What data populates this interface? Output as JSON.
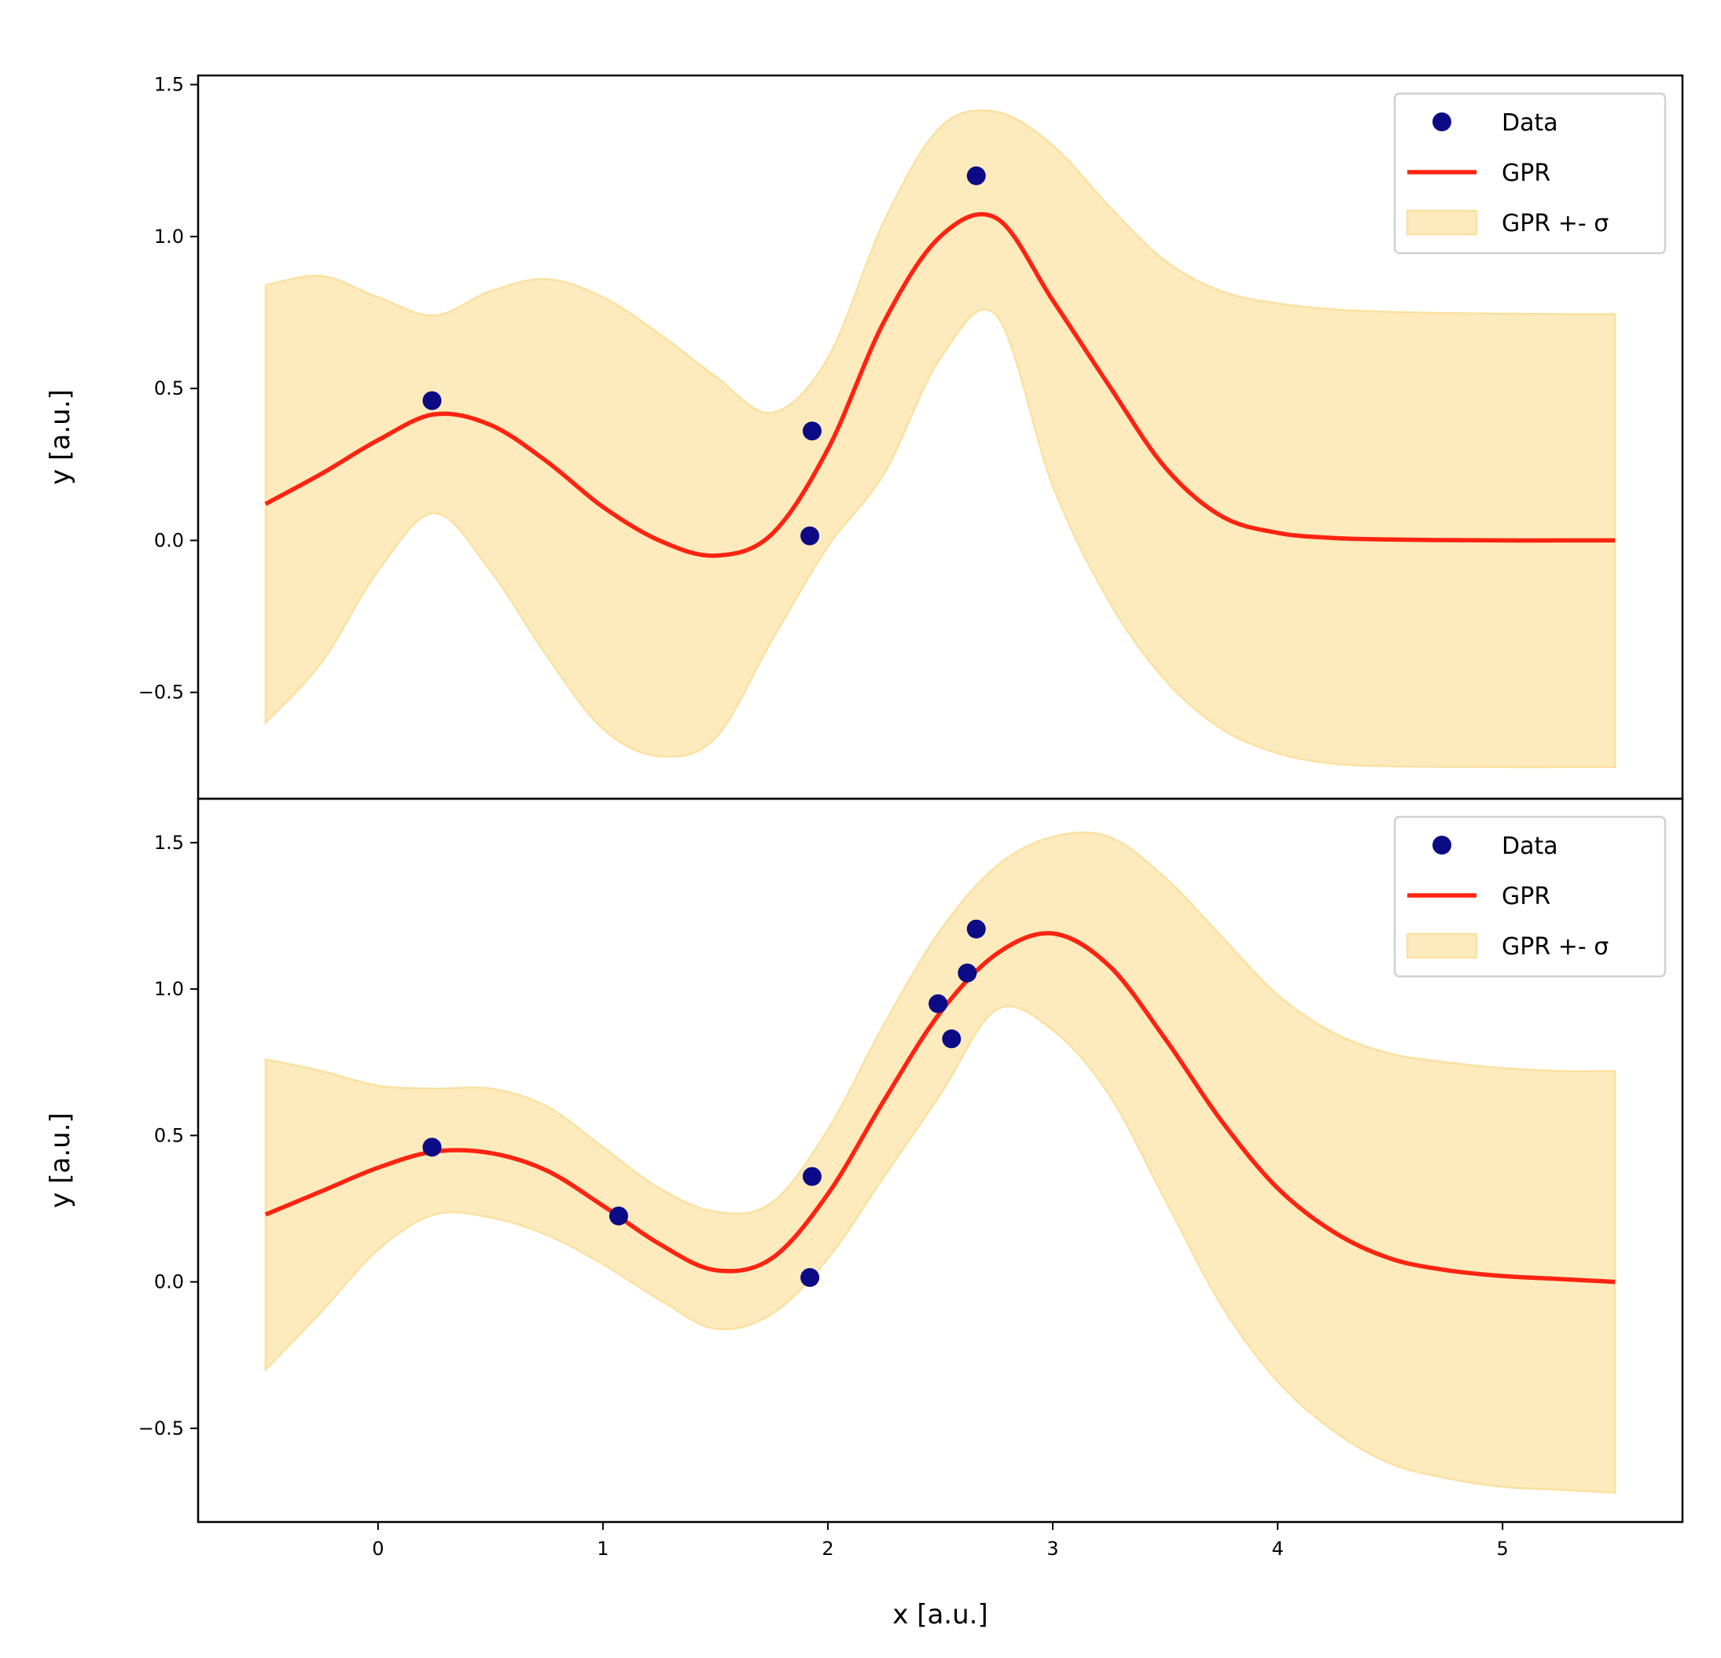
{
  "colors": {
    "data": "#0c0a85",
    "gpr": "#ff2310",
    "band_fill": "#fdebbe",
    "band_edge": "#fbe0a0"
  },
  "chart_data": [
    {
      "type": "line",
      "xlabel": "",
      "ylabel": "y [a.u.]",
      "xlim": [
        -0.8,
        5.8
      ],
      "ylim": [
        -0.85,
        1.53
      ],
      "yticks": [
        "1.5",
        "1.0",
        "0.5",
        "0.0",
        "−0.5"
      ],
      "ytick_values": [
        1.5,
        1.0,
        0.5,
        0.0,
        -0.5
      ],
      "xticks": [],
      "xtick_values": [],
      "grid": false,
      "legend": {
        "placement": "top-right",
        "entries": [
          "Data",
          "GPR",
          "GPR +- σ"
        ]
      },
      "scatter": {
        "name": "Data",
        "x": [
          0.24,
          1.93,
          1.92,
          2.66
        ],
        "y": [
          0.46,
          0.36,
          0.015,
          1.2
        ]
      },
      "curve_x": [
        -0.5,
        -0.25,
        0,
        0.25,
        0.5,
        0.75,
        1.0,
        1.25,
        1.5,
        1.75,
        2.0,
        2.25,
        2.5,
        2.75,
        3.0,
        3.25,
        3.5,
        3.75,
        4.0,
        4.25,
        4.5,
        4.75,
        5.0,
        5.25,
        5.5
      ],
      "mean": {
        "name": "GPR",
        "y": [
          0.12,
          0.22,
          0.33,
          0.415,
          0.38,
          0.26,
          0.11,
          0.0,
          -0.05,
          0.02,
          0.3,
          0.72,
          1.0,
          1.06,
          0.79,
          0.51,
          0.24,
          0.08,
          0.025,
          0.008,
          0.003,
          0.001,
          0.0,
          0.0,
          0.0
        ]
      },
      "band": {
        "name": "GPR +- σ",
        "upper": [
          0.84,
          0.87,
          0.8,
          0.74,
          0.82,
          0.86,
          0.8,
          0.68,
          0.54,
          0.42,
          0.6,
          1.05,
          1.36,
          1.41,
          1.3,
          1.1,
          0.92,
          0.82,
          0.78,
          0.76,
          0.752,
          0.748,
          0.746,
          0.745,
          0.745
        ],
        "lower": [
          -0.6,
          -0.4,
          -0.1,
          0.09,
          -0.1,
          -0.38,
          -0.62,
          -0.71,
          -0.65,
          -0.33,
          -0.02,
          0.22,
          0.6,
          0.74,
          0.18,
          -0.2,
          -0.46,
          -0.62,
          -0.7,
          -0.735,
          -0.743,
          -0.745,
          -0.746,
          -0.746,
          -0.746
        ]
      }
    },
    {
      "type": "line",
      "xlabel": "x [a.u.]",
      "ylabel": "y [a.u.]",
      "xlim": [
        -0.8,
        5.8
      ],
      "ylim": [
        -0.82,
        1.65
      ],
      "yticks": [
        "1.5",
        "1.0",
        "0.5",
        "0.0",
        "−0.5"
      ],
      "ytick_values": [
        1.5,
        1.0,
        0.5,
        0.0,
        -0.5
      ],
      "xticks": [
        "0",
        "1",
        "2",
        "3",
        "4",
        "5"
      ],
      "xtick_values": [
        0,
        1,
        2,
        3,
        4,
        5
      ],
      "grid": false,
      "legend": {
        "placement": "top-right",
        "entries": [
          "Data",
          "GPR",
          "GPR +- σ"
        ]
      },
      "scatter": {
        "name": "Data",
        "x": [
          0.24,
          1.07,
          1.93,
          1.92,
          2.49,
          2.55,
          2.62,
          2.66
        ],
        "y": [
          0.46,
          0.225,
          0.36,
          0.015,
          0.95,
          0.83,
          1.055,
          1.205
        ]
      },
      "curve_x": [
        -0.5,
        -0.25,
        0,
        0.25,
        0.5,
        0.75,
        1.0,
        1.25,
        1.5,
        1.75,
        2.0,
        2.25,
        2.5,
        2.75,
        3.0,
        3.25,
        3.5,
        3.75,
        4.0,
        4.25,
        4.5,
        4.75,
        5.0,
        5.25,
        5.5
      ],
      "mean": {
        "name": "GPR",
        "y": [
          0.23,
          0.31,
          0.39,
          0.445,
          0.44,
          0.38,
          0.26,
          0.13,
          0.04,
          0.08,
          0.3,
          0.62,
          0.92,
          1.12,
          1.19,
          1.08,
          0.83,
          0.55,
          0.32,
          0.17,
          0.08,
          0.04,
          0.02,
          0.01,
          0.0
        ]
      },
      "band": {
        "name": "GPR +- σ",
        "upper": [
          0.76,
          0.72,
          0.67,
          0.66,
          0.66,
          0.6,
          0.46,
          0.32,
          0.24,
          0.27,
          0.52,
          0.88,
          1.2,
          1.42,
          1.52,
          1.52,
          1.38,
          1.18,
          0.98,
          0.85,
          0.78,
          0.75,
          0.73,
          0.72,
          0.72
        ],
        "lower": [
          -0.3,
          -0.1,
          0.11,
          0.23,
          0.22,
          0.16,
          0.06,
          -0.06,
          -0.16,
          -0.11,
          0.08,
          0.36,
          0.64,
          0.93,
          0.86,
          0.64,
          0.28,
          -0.08,
          -0.34,
          -0.51,
          -0.62,
          -0.67,
          -0.7,
          -0.71,
          -0.72
        ]
      }
    }
  ]
}
